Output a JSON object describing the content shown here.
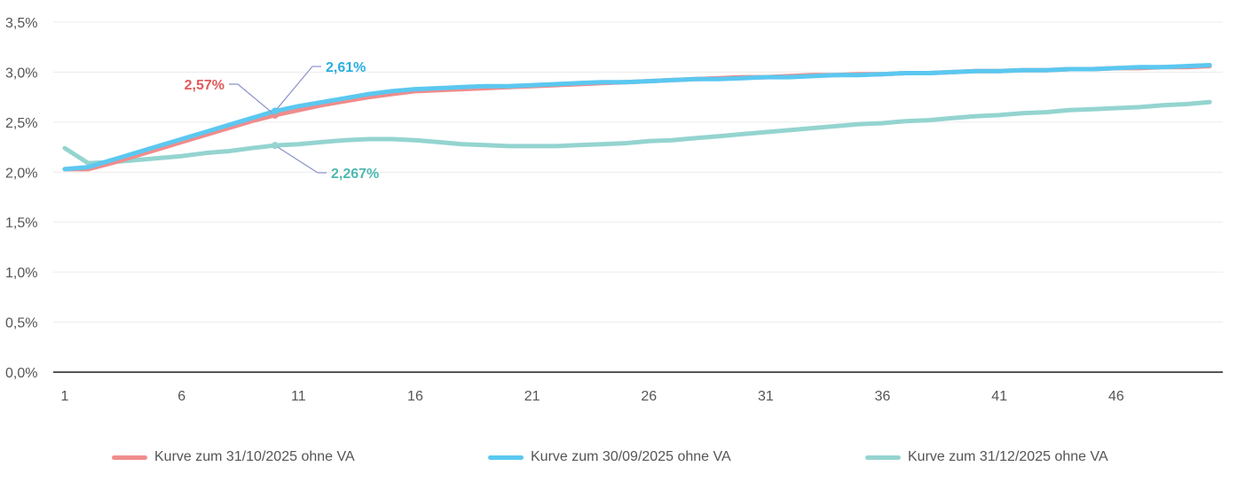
{
  "chart_data": {
    "type": "line",
    "title": "",
    "xlabel": "",
    "ylabel": "",
    "ylim": [
      0,
      3.5
    ],
    "xlim": [
      1,
      50
    ],
    "grid": true,
    "legend_position": "bottom",
    "y_ticks": [
      "0,0%",
      "0,5%",
      "1,0%",
      "1,5%",
      "2,0%",
      "2,5%",
      "3,0%",
      "3,5%"
    ],
    "y_tick_values": [
      0,
      0.5,
      1.0,
      1.5,
      2.0,
      2.5,
      3.0,
      3.5
    ],
    "x_ticks": [
      "1",
      "6",
      "11",
      "16",
      "21",
      "26",
      "31",
      "36",
      "41",
      "46"
    ],
    "x_tick_values": [
      1,
      6,
      11,
      16,
      21,
      26,
      31,
      36,
      41,
      46
    ],
    "x": [
      1,
      2,
      3,
      4,
      5,
      6,
      7,
      8,
      9,
      10,
      11,
      12,
      13,
      14,
      15,
      16,
      17,
      18,
      19,
      20,
      21,
      22,
      23,
      24,
      25,
      26,
      27,
      28,
      29,
      30,
      31,
      32,
      33,
      34,
      35,
      36,
      37,
      38,
      39,
      40,
      41,
      42,
      43,
      44,
      45,
      46,
      47,
      48,
      49,
      50
    ],
    "series": [
      {
        "name": "Kurve zum 31/10/2025 ohne VA",
        "color": "#f08c8c",
        "values": [
          2.03,
          2.03,
          2.09,
          2.16,
          2.23,
          2.3,
          2.37,
          2.44,
          2.51,
          2.57,
          2.62,
          2.67,
          2.71,
          2.75,
          2.78,
          2.81,
          2.82,
          2.83,
          2.84,
          2.85,
          2.86,
          2.87,
          2.88,
          2.89,
          2.9,
          2.91,
          2.92,
          2.93,
          2.94,
          2.95,
          2.95,
          2.96,
          2.97,
          2.97,
          2.98,
          2.98,
          2.99,
          2.99,
          3.0,
          3.01,
          3.01,
          3.02,
          3.02,
          3.03,
          3.03,
          3.04,
          3.04,
          3.05,
          3.05,
          3.06
        ]
      },
      {
        "name": "Kurve zum 30/09/2025 ohne VA",
        "color": "#5bc8f0",
        "values": [
          2.03,
          2.05,
          2.12,
          2.19,
          2.26,
          2.33,
          2.4,
          2.47,
          2.54,
          2.61,
          2.66,
          2.7,
          2.74,
          2.78,
          2.81,
          2.83,
          2.84,
          2.85,
          2.86,
          2.86,
          2.87,
          2.88,
          2.89,
          2.9,
          2.9,
          2.91,
          2.92,
          2.93,
          2.93,
          2.94,
          2.95,
          2.95,
          2.96,
          2.97,
          2.97,
          2.98,
          2.99,
          2.99,
          3.0,
          3.01,
          3.01,
          3.02,
          3.02,
          3.03,
          3.03,
          3.04,
          3.05,
          3.05,
          3.06,
          3.07
        ]
      },
      {
        "name": "Kurve zum 31/12/2025 ohne VA",
        "color": "#94d4d0",
        "values": [
          2.24,
          2.09,
          2.1,
          2.12,
          2.14,
          2.16,
          2.19,
          2.21,
          2.24,
          2.267,
          2.28,
          2.3,
          2.32,
          2.33,
          2.33,
          2.32,
          2.3,
          2.28,
          2.27,
          2.26,
          2.26,
          2.26,
          2.27,
          2.28,
          2.29,
          2.31,
          2.32,
          2.34,
          2.36,
          2.38,
          2.4,
          2.42,
          2.44,
          2.46,
          2.48,
          2.49,
          2.51,
          2.52,
          2.54,
          2.56,
          2.57,
          2.59,
          2.6,
          2.62,
          2.63,
          2.64,
          2.65,
          2.67,
          2.68,
          2.7
        ]
      }
    ],
    "annotations": [
      {
        "series": 0,
        "x": 10,
        "text": "2,57%",
        "color": "#e05a5a"
      },
      {
        "series": 1,
        "x": 10,
        "text": "2,61%",
        "color": "#29aee0"
      },
      {
        "series": 2,
        "x": 10,
        "text": "2,267%",
        "color": "#4fb8b0"
      }
    ]
  },
  "legend": {
    "items": [
      {
        "label": "Kurve zum 31/10/2025 ohne VA",
        "color": "#f08c8c"
      },
      {
        "label": "Kurve zum 30/09/2025 ohne VA",
        "color": "#5bc8f0"
      },
      {
        "label": "Kurve zum 31/12/2025 ohne VA",
        "color": "#94d4d0"
      }
    ]
  }
}
